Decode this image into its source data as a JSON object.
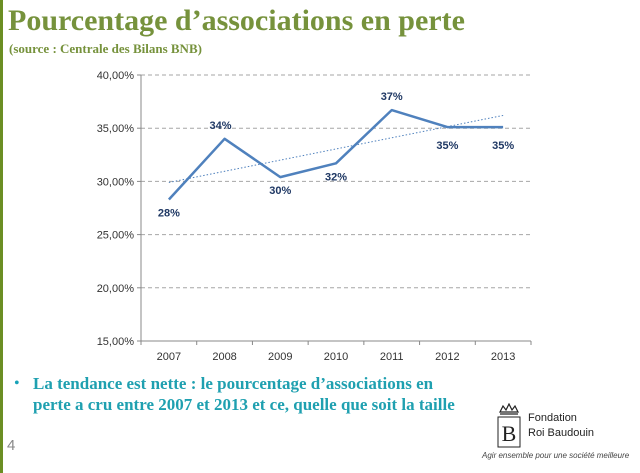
{
  "slide": {
    "title": "Pourcentage d’associations en perte",
    "subtitle": "(source : Centrale des Bilans BNB)",
    "bullet_marker": "•",
    "bullet_text": "La tendance est nette : le pourcentage d’associations en perte a cru entre 2007 et 2013 et ce, quelle que soit la taille",
    "page_number": "4",
    "colors": {
      "title": "#76923c",
      "bullet": "#1fa0b0",
      "series": "#4f81bd"
    }
  },
  "logo": {
    "name_line1": "Fondation",
    "name_line2": "Roi Baudouin",
    "tagline": "Agir ensemble pour une société meilleure",
    "crest_letter": "B"
  },
  "chart_data": {
    "type": "line",
    "title": "",
    "xlabel": "",
    "ylabel": "",
    "x": [
      "2007",
      "2008",
      "2009",
      "2010",
      "2011",
      "2012",
      "2013"
    ],
    "series": [
      {
        "values": [
          28.3,
          34.0,
          30.4,
          31.7,
          36.7,
          35.1,
          35.1
        ],
        "data_labels": [
          "28%",
          "34%",
          "30%",
          "32%",
          "37%",
          "35%",
          "35%"
        ]
      }
    ],
    "trendline": {
      "style": "dotted",
      "start": 29.9,
      "end": 36.2
    },
    "ylim": [
      15,
      40
    ],
    "yticks": [
      15,
      20,
      25,
      30,
      35,
      40
    ],
    "ytick_labels": [
      "15,00%",
      "20,00%",
      "25,00%",
      "30,00%",
      "35,00%",
      "40,00%"
    ],
    "grid": "horizontal dashed",
    "legend": "none"
  }
}
